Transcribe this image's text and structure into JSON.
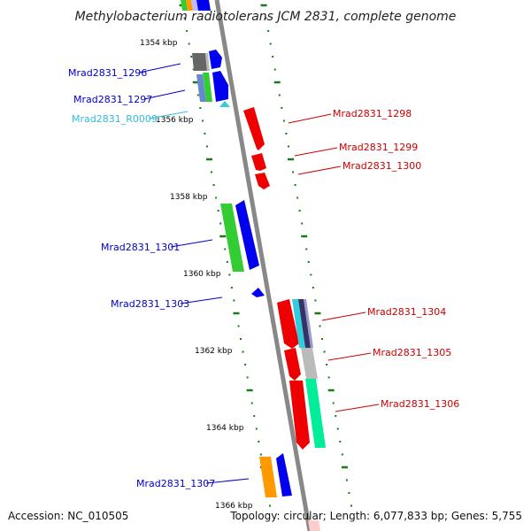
{
  "title": "Methylobacterium radiotolerans JCM 2831, complete genome",
  "footer": {
    "accession": "Accession: NC_010505",
    "topology": "Topology: circular; Length: 6,077,833 bp; Genes: 5,755"
  },
  "ruler": [
    "1354 kbp",
    "1356 kbp",
    "1358 kbp",
    "1360 kbp",
    "1362 kbp",
    "1364 kbp",
    "1366 kbp"
  ],
  "colors": {
    "blue": "#0000ee",
    "red": "#ee0000",
    "green": "#33cc33",
    "orange": "#ff9900",
    "gray": "#666666",
    "lightgray": "#bbbbbb",
    "cyan": "#33ccdd",
    "teal": "#00ee99",
    "axis": "#888888",
    "tick": "#1a7a1a",
    "label_blue": "#0000cc",
    "label_red": "#cc0000",
    "label_cyan": "#33bbdd"
  },
  "genes_left": [
    {
      "name": "Mrad2831_1296",
      "color": "label_blue"
    },
    {
      "name": "Mrad2831_1297",
      "color": "label_blue"
    },
    {
      "name": "Mrad2831_R0009",
      "color": "label_cyan"
    },
    {
      "name": "Mrad2831_1301",
      "color": "label_blue"
    },
    {
      "name": "Mrad2831_1303",
      "color": "label_blue"
    },
    {
      "name": "Mrad2831_1307",
      "color": "label_blue"
    }
  ],
  "genes_right": [
    {
      "name": "Mrad2831_1298",
      "color": "label_red"
    },
    {
      "name": "Mrad2831_1299",
      "color": "label_red"
    },
    {
      "name": "Mrad2831_1300",
      "color": "label_red"
    },
    {
      "name": "Mrad2831_1304",
      "color": "label_red"
    },
    {
      "name": "Mrad2831_1305",
      "color": "label_red"
    },
    {
      "name": "Mrad2831_1306",
      "color": "label_red"
    }
  ]
}
